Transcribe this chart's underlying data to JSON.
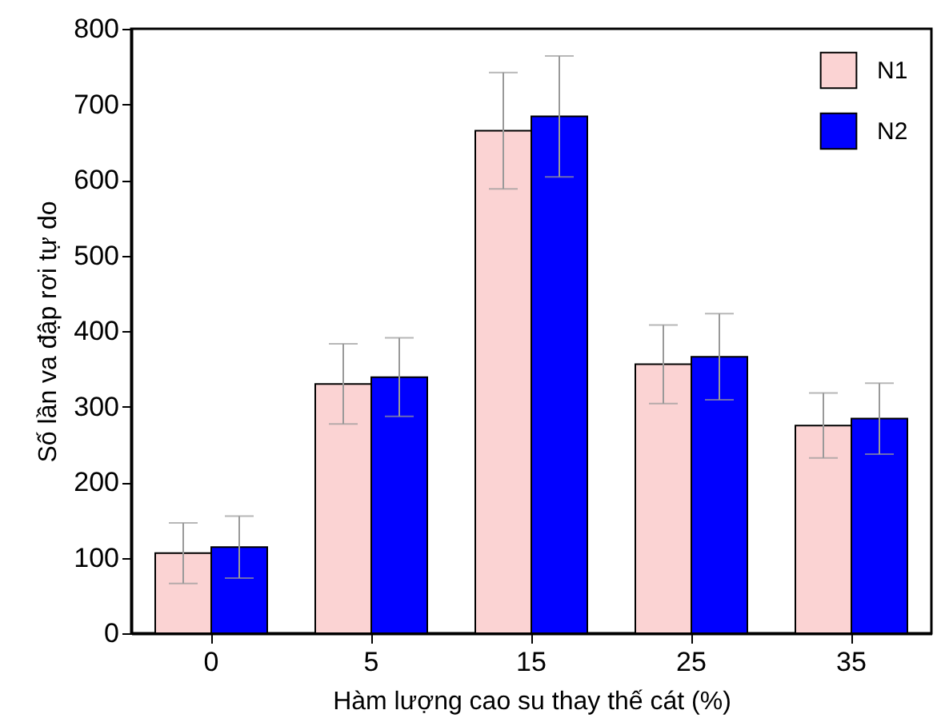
{
  "chart_data": {
    "type": "bar",
    "xlabel": "Hàm lượng cao su thay thế cát (%)",
    "ylabel": "Số lần va đập rơi tự do",
    "categories": [
      "0",
      "5",
      "15",
      "25",
      "35"
    ],
    "series": [
      {
        "name": "N1",
        "color": "#fbd3d3",
        "values": [
          106,
          330,
          665,
          356,
          275
        ],
        "errors": [
          40,
          53,
          77,
          52,
          43
        ]
      },
      {
        "name": "N2",
        "color": "#0000ff",
        "values": [
          114,
          339,
          684,
          366,
          284
        ],
        "errors": [
          41,
          52,
          80,
          57,
          47
        ]
      }
    ],
    "ylim": [
      0,
      800
    ],
    "yticks": [
      0,
      100,
      200,
      300,
      400,
      500,
      600,
      700,
      800
    ],
    "grid": false,
    "legend": "top right"
  }
}
